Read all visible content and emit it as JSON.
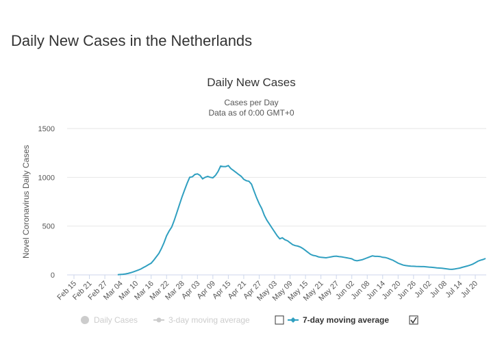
{
  "page_title": "Daily New Cases in the Netherlands",
  "chart_data": {
    "type": "line",
    "title": "Daily New Cases",
    "subtitle": [
      "Cases per Day",
      "Data as of 0:00 GMT+0"
    ],
    "y_label": "Novel Coronavirus Daily Cases",
    "ylim": [
      0,
      1500
    ],
    "yticks": [
      0,
      500,
      1000,
      1500
    ],
    "grid": true,
    "categories": [
      "Feb 15",
      null,
      null,
      null,
      null,
      null,
      "Feb 21",
      null,
      null,
      null,
      null,
      null,
      "Feb 27",
      null,
      null,
      null,
      null,
      null,
      "Mar 04",
      null,
      null,
      null,
      null,
      null,
      "Mar 10",
      null,
      null,
      null,
      null,
      null,
      "Mar 16",
      null,
      null,
      null,
      null,
      null,
      "Mar 22",
      null,
      null,
      null,
      null,
      null,
      "Mar 28",
      null,
      null,
      null,
      null,
      null,
      "Apr 03",
      null,
      null,
      null,
      null,
      null,
      "Apr 09",
      null,
      null,
      null,
      null,
      null,
      "Apr 15",
      null,
      null,
      null,
      null,
      null,
      "Apr 21",
      null,
      null,
      null,
      null,
      null,
      "Apr 27",
      null,
      null,
      null,
      null,
      null,
      "May 03",
      null,
      null,
      null,
      null,
      null,
      "May 09",
      null,
      null,
      null,
      null,
      null,
      "May 15",
      null,
      null,
      null,
      null,
      null,
      "May 21",
      null,
      null,
      null,
      null,
      null,
      "May 27",
      null,
      null,
      null,
      null,
      null,
      "Jun 02",
      null,
      null,
      null,
      null,
      null,
      "Jun 08",
      null,
      null,
      null,
      null,
      null,
      "Jun 14",
      null,
      null,
      null,
      null,
      null,
      "Jun 20",
      null,
      null,
      null,
      null,
      null,
      "Jun 26",
      null,
      null,
      null,
      null,
      null,
      "Jul 02",
      null,
      null,
      null,
      null,
      null,
      "Jul 08",
      null,
      null,
      null,
      null,
      null,
      "Jul 14",
      null,
      null,
      null,
      null,
      null,
      "Jul 20",
      null,
      null,
      null,
      null
    ],
    "series": [
      {
        "name": "7-day moving average",
        "color": "#2f9fc0",
        "values": [
          null,
          null,
          null,
          null,
          null,
          null,
          null,
          null,
          null,
          null,
          null,
          null,
          null,
          null,
          null,
          null,
          null,
          2,
          4,
          6,
          10,
          15,
          22,
          30,
          40,
          50,
          60,
          75,
          90,
          105,
          120,
          150,
          185,
          220,
          270,
          330,
          400,
          450,
          490,
          560,
          640,
          720,
          800,
          870,
          940,
          1000,
          1005,
          1030,
          1035,
          1020,
          985,
          1000,
          1010,
          1000,
          995,
          1020,
          1060,
          1115,
          1110,
          1110,
          1120,
          1090,
          1070,
          1050,
          1030,
          1010,
          980,
          965,
          960,
          930,
          860,
          790,
          730,
          680,
          610,
          560,
          520,
          480,
          440,
          400,
          370,
          380,
          360,
          350,
          330,
          310,
          300,
          295,
          285,
          270,
          250,
          230,
          210,
          200,
          195,
          185,
          180,
          178,
          175,
          180,
          185,
          190,
          192,
          188,
          185,
          180,
          175,
          170,
          165,
          150,
          145,
          150,
          155,
          165,
          175,
          185,
          195,
          190,
          190,
          188,
          180,
          178,
          170,
          160,
          150,
          135,
          120,
          110,
          100,
          95,
          92,
          90,
          88,
          87,
          86,
          85,
          85,
          83,
          80,
          78,
          75,
          72,
          70,
          68,
          65,
          62,
          58,
          57,
          60,
          65,
          70,
          78,
          85,
          92,
          100,
          110,
          125,
          140,
          150,
          158,
          168
        ]
      }
    ],
    "hidden_series": [
      {
        "name": "Daily Cases",
        "color": "#cccccc"
      },
      {
        "name": "3-day moving average",
        "color": "#cccccc"
      }
    ]
  }
}
